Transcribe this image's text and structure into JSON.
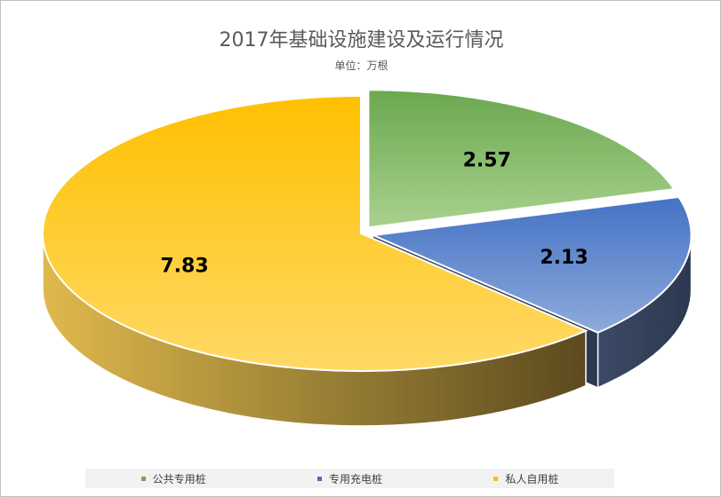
{
  "chart_data": {
    "type": "pie",
    "title": "2017年基础设施建设及运行情况",
    "subtitle": "单位：万根",
    "categories": [
      "公共专用桩",
      "专用充电桩",
      "私人自用桩"
    ],
    "values": [
      2.57,
      2.13,
      7.83
    ],
    "data_labels": [
      "2.57",
      "2.13",
      "7.83"
    ],
    "colors": [
      "#70ad47",
      "#4472c4",
      "#ffc000"
    ],
    "legend_position": "bottom",
    "style": "3d-exploded"
  }
}
